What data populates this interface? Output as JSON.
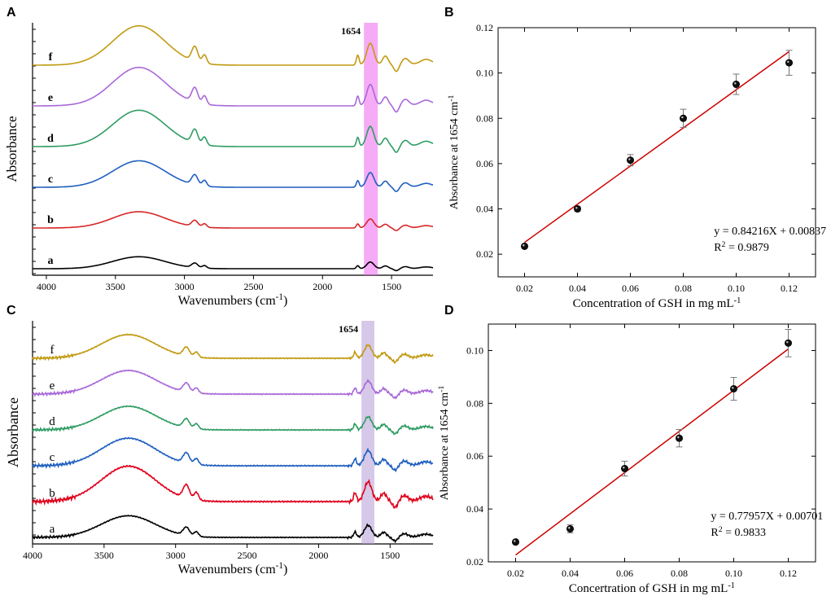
{
  "chart_data": [
    {
      "panel": "A",
      "type": "line",
      "xlabel": "Wavenumbers (cm",
      "xlabel_sup": "-1",
      "xlabel_end": ")",
      "ylabel": "Absorbance",
      "xlim": [
        4100,
        1200
      ],
      "x_ticks": [
        4000,
        3500,
        3000,
        2500,
        2000,
        1500
      ],
      "highlight": {
        "label": "1654",
        "range": [
          1700,
          1600
        ],
        "color": "#ee66ee"
      },
      "series": [
        {
          "name": "a",
          "color": "#000000",
          "scale": 0.28
        },
        {
          "name": "b",
          "color": "#d62728",
          "scale": 0.38
        },
        {
          "name": "c",
          "color": "#1f5fbf",
          "scale": 0.62
        },
        {
          "name": "d",
          "color": "#2e9c63",
          "scale": 0.85
        },
        {
          "name": "e",
          "color": "#a868d8",
          "scale": 0.9
        },
        {
          "name": "f",
          "color": "#c19a12",
          "scale": 0.92
        }
      ]
    },
    {
      "panel": "B",
      "type": "scatter",
      "xlabel": "Concentration of GSH in mg mL",
      "xlabel_sup": "-1",
      "ylabel": "Absorbance at 1654 cm",
      "ylabel_sup": "-1",
      "xlim": [
        0.01,
        0.13
      ],
      "ylim": [
        0.01,
        0.12
      ],
      "x_ticks": [
        "0.02",
        "0.04",
        "0.06",
        "0.08",
        "0.10",
        "0.12"
      ],
      "y_ticks": [
        "0.02",
        "0.04",
        "0.06",
        "0.08",
        "0.10",
        "0.12"
      ],
      "points": [
        {
          "x": 0.02,
          "y": 0.0235,
          "err": 0.0
        },
        {
          "x": 0.04,
          "y": 0.04,
          "err": 0.001
        },
        {
          "x": 0.06,
          "y": 0.0615,
          "err": 0.0025
        },
        {
          "x": 0.08,
          "y": 0.08,
          "err": 0.004
        },
        {
          "x": 0.1,
          "y": 0.095,
          "err": 0.0045
        },
        {
          "x": 0.12,
          "y": 0.1045,
          "err": 0.0055
        }
      ],
      "fit": {
        "slope": 0.84216,
        "intercept": 0.00837,
        "x_range": [
          0.02,
          0.12
        ],
        "color": "#cc0000"
      },
      "equation": "y = 0.84216X + 0.00837",
      "r2_label": "R",
      "r2_value": " = 0.9879"
    },
    {
      "panel": "C",
      "type": "line",
      "xlabel": "Wavenumbers (cm",
      "xlabel_sup": "-1",
      "xlabel_end": ")",
      "ylabel": "Absorbance",
      "xlim": [
        4000,
        1200
      ],
      "x_ticks": [
        4000,
        3500,
        3000,
        2500,
        2000,
        1500
      ],
      "highlight": {
        "label": "1654",
        "range": [
          1700,
          1610
        ],
        "color": "#b39ad6"
      },
      "series": [
        {
          "name": "a",
          "color": "#000000",
          "scale": 0.55
        },
        {
          "name": "b",
          "color": "#e0001b",
          "scale": 0.9
        },
        {
          "name": "c",
          "color": "#1f5fbf",
          "scale": 0.7
        },
        {
          "name": "d",
          "color": "#2e9c63",
          "scale": 0.6
        },
        {
          "name": "e",
          "color": "#a868d8",
          "scale": 0.6
        },
        {
          "name": "f",
          "color": "#c19a12",
          "scale": 0.6
        }
      ]
    },
    {
      "panel": "D",
      "type": "scatter",
      "xlabel": "Concertration of GSH in mg mL",
      "xlabel_sup": "-1",
      "ylabel": "Absorbance at 1654 cm",
      "ylabel_sup": "-1",
      "xlim": [
        0.01,
        0.13
      ],
      "ylim": [
        0.02,
        0.11
      ],
      "x_ticks": [
        "0.02",
        "0.04",
        "0.06",
        "0.08",
        "0.10",
        "0.12"
      ],
      "y_ticks": [
        "0.02",
        "0.04",
        "0.06",
        "0.08",
        "0.10"
      ],
      "points": [
        {
          "x": 0.02,
          "y": 0.0275,
          "err": 0.0
        },
        {
          "x": 0.04,
          "y": 0.0325,
          "err": 0.0015
        },
        {
          "x": 0.06,
          "y": 0.0553,
          "err": 0.0028
        },
        {
          "x": 0.08,
          "y": 0.0668,
          "err": 0.0033
        },
        {
          "x": 0.1,
          "y": 0.0855,
          "err": 0.0043
        },
        {
          "x": 0.12,
          "y": 0.1028,
          "err": 0.0052
        }
      ],
      "fit": {
        "slope": 0.77957,
        "intercept": 0.00701,
        "x_range": [
          0.02,
          0.12
        ],
        "color": "#cc0000"
      },
      "equation": "y = 0.77957X + 0.00701",
      "r2_label": "R",
      "r2_value": " = 0.9833"
    }
  ]
}
